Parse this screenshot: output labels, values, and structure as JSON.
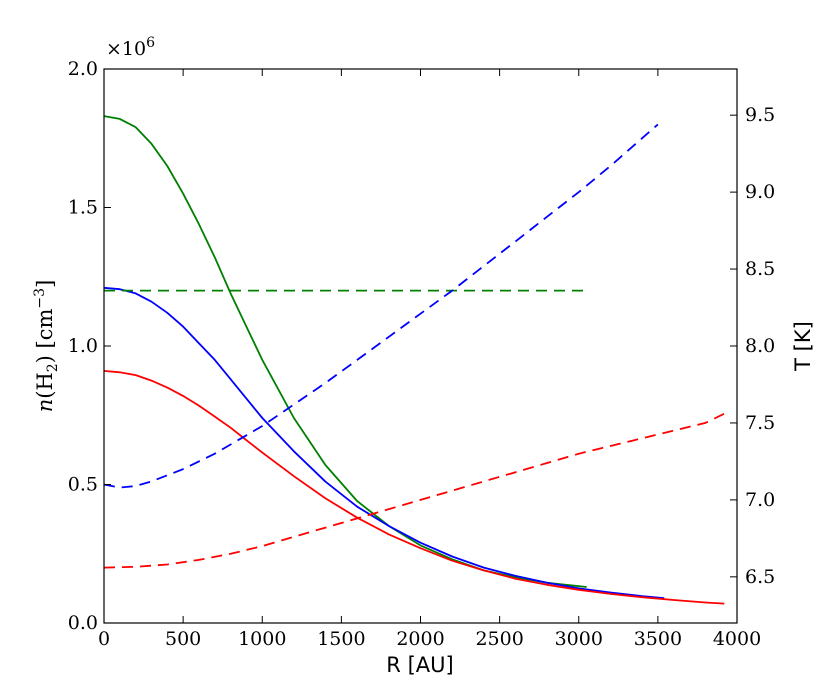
{
  "chart_data": {
    "type": "line",
    "title": "",
    "xlabel": "R [AU]",
    "ylabel_left": "n(H₂) [cm⁻³]",
    "ylabel_left_parts": {
      "pre": "n",
      "open": "(H",
      "sub": "2",
      "mid": ") [cm",
      "sup": "−3",
      "post": "]"
    },
    "ylabel_right": "T [K]",
    "offset_label": "×10",
    "offset_exponent": "6",
    "xlim": [
      0,
      4000
    ],
    "ylim_left": [
      0.0,
      2.0
    ],
    "ylim_right": [
      6.2,
      9.8
    ],
    "x_ticks": [
      0,
      500,
      1000,
      1500,
      2000,
      2500,
      3000,
      3500,
      4000
    ],
    "x_tick_labels": [
      "0",
      "500",
      "1000",
      "1500",
      "2000",
      "2500",
      "3000",
      "3500",
      "4000"
    ],
    "y_left_ticks": [
      0.0,
      0.5,
      1.0,
      1.5,
      2.0
    ],
    "y_left_tick_labels": [
      "0.0",
      "0.5",
      "1.0",
      "1.5",
      "2.0"
    ],
    "y_right_ticks": [
      6.5,
      7.0,
      7.5,
      8.0,
      8.5,
      9.0,
      9.5
    ],
    "y_right_tick_labels": [
      "6.5",
      "7.0",
      "7.5",
      "8.0",
      "8.5",
      "9.0",
      "9.5"
    ],
    "grid": false,
    "legend": "none",
    "series": [
      {
        "name": "density-green",
        "axis": "left",
        "style": "solid",
        "color": "#008000",
        "x": [
          0,
          100,
          200,
          300,
          400,
          500,
          600,
          700,
          800,
          900,
          1000,
          1200,
          1400,
          1600,
          1800,
          2000,
          2200,
          2400,
          2600,
          2800,
          3050
        ],
        "values": [
          1.83,
          1.82,
          1.79,
          1.73,
          1.65,
          1.55,
          1.44,
          1.32,
          1.19,
          1.07,
          0.95,
          0.74,
          0.57,
          0.44,
          0.35,
          0.28,
          0.23,
          0.19,
          0.165,
          0.145,
          0.13
        ]
      },
      {
        "name": "density-blue",
        "axis": "left",
        "style": "solid",
        "color": "#0000ff",
        "x": [
          0,
          100,
          200,
          300,
          400,
          500,
          600,
          700,
          800,
          900,
          1000,
          1200,
          1400,
          1600,
          1800,
          2000,
          2200,
          2400,
          2600,
          2800,
          3000,
          3200,
          3400,
          3540
        ],
        "values": [
          1.21,
          1.205,
          1.19,
          1.16,
          1.12,
          1.07,
          1.01,
          0.95,
          0.88,
          0.81,
          0.74,
          0.62,
          0.51,
          0.42,
          0.35,
          0.29,
          0.24,
          0.2,
          0.17,
          0.145,
          0.125,
          0.11,
          0.097,
          0.09
        ]
      },
      {
        "name": "density-red",
        "axis": "left",
        "style": "solid",
        "color": "#ff0000",
        "x": [
          0,
          100,
          200,
          300,
          400,
          500,
          600,
          700,
          800,
          900,
          1000,
          1200,
          1400,
          1600,
          1800,
          2000,
          2200,
          2400,
          2600,
          2800,
          3000,
          3200,
          3400,
          3600,
          3800,
          3920
        ],
        "values": [
          0.91,
          0.905,
          0.895,
          0.875,
          0.85,
          0.82,
          0.785,
          0.745,
          0.705,
          0.66,
          0.615,
          0.53,
          0.45,
          0.38,
          0.32,
          0.27,
          0.225,
          0.19,
          0.16,
          0.138,
          0.12,
          0.105,
          0.093,
          0.083,
          0.074,
          0.07
        ]
      },
      {
        "name": "temperature-green",
        "axis": "right",
        "style": "dashed",
        "color": "#008000",
        "x": [
          0,
          3050
        ],
        "values": [
          8.36,
          8.36
        ]
      },
      {
        "name": "temperature-blue",
        "axis": "right",
        "style": "dashed",
        "color": "#0000ff",
        "x": [
          0,
          100,
          200,
          300,
          400,
          500,
          600,
          700,
          800,
          900,
          1000,
          1200,
          1400,
          1600,
          1800,
          2000,
          2200,
          2400,
          2600,
          2800,
          3000,
          3200,
          3400,
          3500
        ],
        "values": [
          7.1,
          7.08,
          7.09,
          7.12,
          7.16,
          7.2,
          7.25,
          7.3,
          7.36,
          7.42,
          7.48,
          7.62,
          7.76,
          7.91,
          8.06,
          8.21,
          8.36,
          8.52,
          8.68,
          8.84,
          9.0,
          9.17,
          9.35,
          9.44
        ]
      },
      {
        "name": "temperature-red",
        "axis": "right",
        "style": "dashed",
        "color": "#ff0000",
        "x": [
          0,
          200,
          400,
          600,
          800,
          1000,
          1200,
          1400,
          1600,
          1800,
          2000,
          2200,
          2400,
          2600,
          2800,
          3000,
          3200,
          3400,
          3600,
          3800,
          3920
        ],
        "values": [
          6.56,
          6.565,
          6.58,
          6.61,
          6.65,
          6.7,
          6.76,
          6.82,
          6.88,
          6.94,
          7.0,
          7.06,
          7.12,
          7.18,
          7.24,
          7.3,
          7.35,
          7.4,
          7.45,
          7.5,
          7.56
        ]
      }
    ]
  }
}
